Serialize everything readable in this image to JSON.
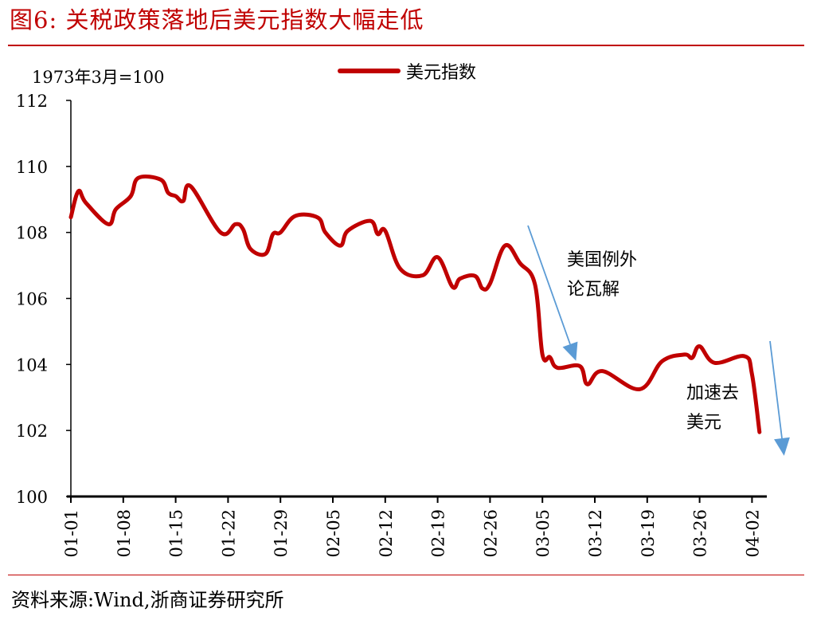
{
  "header": {
    "title": "图6:   关税政策落地后美元指数大幅走低"
  },
  "footer": {
    "source": "资料来源:Wind,浙商证券研究所"
  },
  "chart_data": {
    "type": "line",
    "title": "关税政策落地后美元指数大幅走低",
    "unit_note": "1973年3月=100",
    "xlabel": "",
    "ylabel": "",
    "ylim": [
      100,
      112
    ],
    "yticks": [
      100,
      102,
      104,
      106,
      108,
      110,
      112
    ],
    "xtick_labels": [
      "01-01",
      "01-08",
      "01-15",
      "01-22",
      "01-29",
      "02-05",
      "02-12",
      "02-19",
      "02-26",
      "03-05",
      "03-12",
      "03-19",
      "03-26",
      "04-02"
    ],
    "grid": false,
    "legend_position": "top-center",
    "series": [
      {
        "name": "美元指数",
        "color": "#c00000",
        "x": [
          "01-01",
          "01-02",
          "01-03",
          "01-06",
          "01-07",
          "01-09",
          "01-10",
          "01-13",
          "01-14",
          "01-15",
          "01-16",
          "01-17",
          "01-21",
          "01-23",
          "01-24",
          "01-25",
          "01-27",
          "01-28",
          "01-29",
          "01-31",
          "02-03",
          "02-04",
          "02-06",
          "02-07",
          "02-10",
          "02-11",
          "02-12",
          "02-14",
          "02-17",
          "02-19",
          "02-21",
          "02-22",
          "02-24",
          "02-25",
          "02-26",
          "02-28",
          "03-02",
          "03-04",
          "03-05",
          "03-06",
          "03-07",
          "03-10",
          "03-11",
          "03-13",
          "03-18",
          "03-21",
          "03-24",
          "03-25",
          "03-26",
          "03-28",
          "04-01",
          "04-02",
          "04-03"
        ],
        "values": [
          108.46,
          109.25,
          108.9,
          108.25,
          108.7,
          109.1,
          109.65,
          109.6,
          109.2,
          109.1,
          108.95,
          109.4,
          108.0,
          108.25,
          108.1,
          107.5,
          107.35,
          107.95,
          108.0,
          108.5,
          108.45,
          108.0,
          107.6,
          108.05,
          108.35,
          107.95,
          108.05,
          106.9,
          106.7,
          107.25,
          106.35,
          106.6,
          106.68,
          106.3,
          106.45,
          107.6,
          107.07,
          106.43,
          104.3,
          104.22,
          103.9,
          103.95,
          103.4,
          103.8,
          103.25,
          104.1,
          104.3,
          104.2,
          104.55,
          104.05,
          104.25,
          103.7,
          101.95
        ]
      }
    ],
    "annotations": [
      {
        "text_line1": "美国例外",
        "text_line2": "论瓦解",
        "arrow_color": "#5b9bd5"
      },
      {
        "text_line1": "加速去",
        "text_line2": "美元",
        "arrow_color": "#5b9bd5"
      }
    ]
  }
}
